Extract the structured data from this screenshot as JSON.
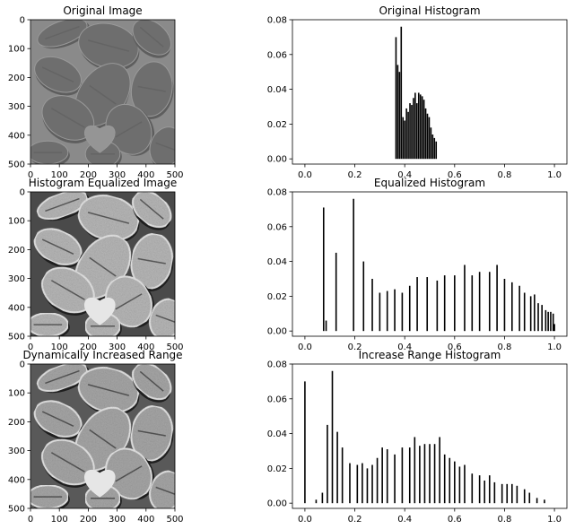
{
  "chart_data": [
    {
      "type": "image",
      "title": "Original Image",
      "xlim": [
        0,
        500
      ],
      "ylim": [
        500,
        0
      ],
      "xticks": [
        "0",
        "100",
        "200",
        "300",
        "400",
        "500"
      ],
      "yticks": [
        "0",
        "100",
        "200",
        "300",
        "400",
        "500"
      ],
      "content": "low-contrast grayscale micrograph of pollen grains",
      "tone": "#7a7a7a"
    },
    {
      "type": "bar",
      "title": "Original Histogram",
      "xlim": [
        -0.05,
        1.05
      ],
      "ylim": [
        -0.003,
        0.08
      ],
      "xticks": [
        "0.0",
        "0.2",
        "0.4",
        "0.6",
        "0.8",
        "1.0"
      ],
      "yticks": [
        "0.00",
        "0.02",
        "0.04",
        "0.06",
        "0.08"
      ],
      "bar_width": 0.005,
      "x": [
        0.365,
        0.372,
        0.379,
        0.386,
        0.393,
        0.4,
        0.407,
        0.414,
        0.421,
        0.428,
        0.435,
        0.442,
        0.449,
        0.456,
        0.463,
        0.47,
        0.477,
        0.484,
        0.491,
        0.498,
        0.505,
        0.512,
        0.519,
        0.526
      ],
      "y": [
        0.07,
        0.054,
        0.05,
        0.076,
        0.024,
        0.022,
        0.029,
        0.027,
        0.032,
        0.031,
        0.035,
        0.038,
        0.032,
        0.038,
        0.037,
        0.036,
        0.034,
        0.029,
        0.026,
        0.024,
        0.018,
        0.014,
        0.012,
        0.01
      ],
      "color": "#000000"
    },
    {
      "type": "image",
      "title": "Histogram Equalized Image",
      "xlim": [
        0,
        500
      ],
      "ylim": [
        500,
        0
      ],
      "xticks": [
        "0",
        "100",
        "200",
        "300",
        "400",
        "500"
      ],
      "yticks": [
        "0",
        "100",
        "200",
        "300",
        "400",
        "500"
      ],
      "content": "high-contrast equalized micrograph of pollen grains",
      "tone": "#555555"
    },
    {
      "type": "bar",
      "title": "Equalized Histogram",
      "xlim": [
        -0.05,
        1.05
      ],
      "ylim": [
        -0.003,
        0.08
      ],
      "xticks": [
        "0.0",
        "0.2",
        "0.4",
        "0.6",
        "0.8",
        "1.0"
      ],
      "yticks": [
        "0.00",
        "0.02",
        "0.04",
        "0.06",
        "0.08"
      ],
      "bar_width": 0.005,
      "x": [
        0.075,
        0.085,
        0.125,
        0.195,
        0.235,
        0.27,
        0.3,
        0.33,
        0.36,
        0.39,
        0.42,
        0.45,
        0.49,
        0.53,
        0.56,
        0.6,
        0.64,
        0.67,
        0.7,
        0.74,
        0.77,
        0.8,
        0.83,
        0.86,
        0.88,
        0.905,
        0.92,
        0.935,
        0.95,
        0.965,
        0.975,
        0.985,
        0.995,
        1.0
      ],
      "y": [
        0.071,
        0.006,
        0.045,
        0.076,
        0.04,
        0.03,
        0.022,
        0.023,
        0.024,
        0.022,
        0.026,
        0.031,
        0.031,
        0.029,
        0.032,
        0.032,
        0.038,
        0.032,
        0.034,
        0.034,
        0.038,
        0.03,
        0.028,
        0.026,
        0.022,
        0.02,
        0.021,
        0.016,
        0.015,
        0.012,
        0.011,
        0.011,
        0.01,
        0.004
      ],
      "color": "#000000"
    },
    {
      "type": "image",
      "title": "Dynamically Increased Range",
      "xlim": [
        0,
        500
      ],
      "ylim": [
        500,
        0
      ],
      "xticks": [
        "0",
        "100",
        "200",
        "300",
        "400",
        "500"
      ],
      "yticks": [
        "0",
        "100",
        "200",
        "300",
        "400",
        "500"
      ],
      "content": "contrast-stretched micrograph of pollen grains",
      "tone": "#5f5f5f"
    },
    {
      "type": "bar",
      "title": "Increase Range Histogram",
      "xlim": [
        -0.05,
        1.05
      ],
      "ylim": [
        -0.003,
        0.08
      ],
      "xticks": [
        "0.0",
        "0.2",
        "0.4",
        "0.6",
        "0.8",
        "1.0"
      ],
      "yticks": [
        "0.00",
        "0.02",
        "0.04",
        "0.06",
        "0.08"
      ],
      "bar_width": 0.005,
      "x": [
        0.0,
        0.045,
        0.07,
        0.09,
        0.11,
        0.13,
        0.15,
        0.18,
        0.21,
        0.23,
        0.25,
        0.27,
        0.29,
        0.31,
        0.33,
        0.36,
        0.39,
        0.42,
        0.44,
        0.46,
        0.48,
        0.5,
        0.52,
        0.54,
        0.56,
        0.58,
        0.6,
        0.62,
        0.64,
        0.67,
        0.7,
        0.72,
        0.74,
        0.76,
        0.79,
        0.81,
        0.83,
        0.85,
        0.88,
        0.9,
        0.93,
        0.96
      ],
      "y": [
        0.07,
        0.002,
        0.006,
        0.045,
        0.076,
        0.041,
        0.032,
        0.023,
        0.022,
        0.023,
        0.02,
        0.022,
        0.026,
        0.032,
        0.031,
        0.028,
        0.032,
        0.032,
        0.038,
        0.033,
        0.034,
        0.034,
        0.034,
        0.038,
        0.028,
        0.026,
        0.024,
        0.021,
        0.022,
        0.017,
        0.016,
        0.013,
        0.016,
        0.012,
        0.011,
        0.011,
        0.011,
        0.01,
        0.008,
        0.006,
        0.003,
        0.002
      ],
      "color": "#000000"
    }
  ]
}
